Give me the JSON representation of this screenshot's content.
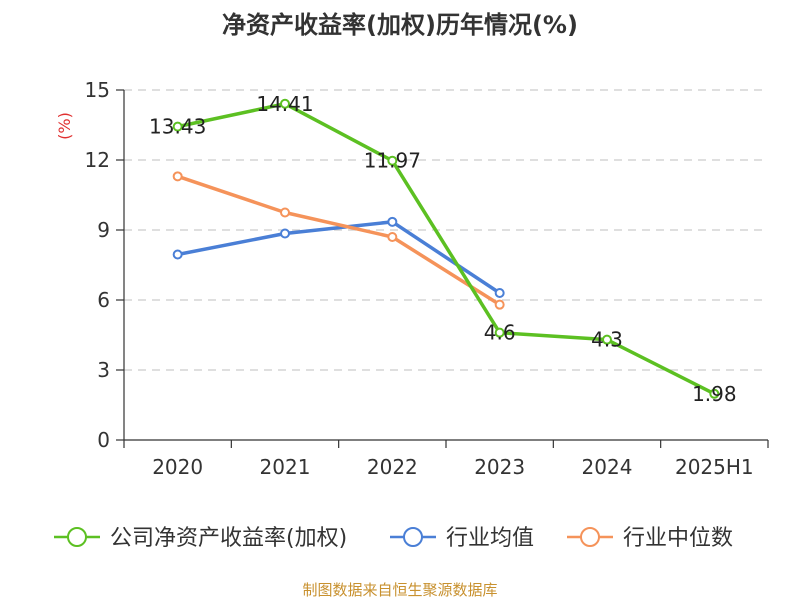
{
  "chart_data": {
    "type": "line",
    "title": "净资产收益率(加权)历年情况(%)",
    "ylabel": "(%)",
    "categories": [
      "2020",
      "2021",
      "2022",
      "2023",
      "2024",
      "2025H1"
    ],
    "ylim": [
      0,
      15
    ],
    "yticks": [
      "0",
      "3",
      "6",
      "9",
      "12",
      "15"
    ],
    "grid": true,
    "legend_position": "bottom",
    "series": [
      {
        "name": "公司净资产收益率(加权)",
        "color": "#5cc022",
        "values": [
          13.43,
          14.41,
          11.97,
          4.6,
          4.3,
          1.98
        ],
        "labels": [
          "13.43",
          "14.41",
          "11.97",
          "4.6",
          "4.3",
          "1.98"
        ]
      },
      {
        "name": "行业均值",
        "color": "#4a7fd6",
        "values": [
          7.95,
          8.85,
          9.35,
          6.3,
          null,
          null
        ]
      },
      {
        "name": "行业中位数",
        "color": "#f5935a",
        "values": [
          11.3,
          9.75,
          8.7,
          5.8,
          null,
          null
        ]
      }
    ]
  },
  "source": "制图数据来自恒生聚源数据库"
}
